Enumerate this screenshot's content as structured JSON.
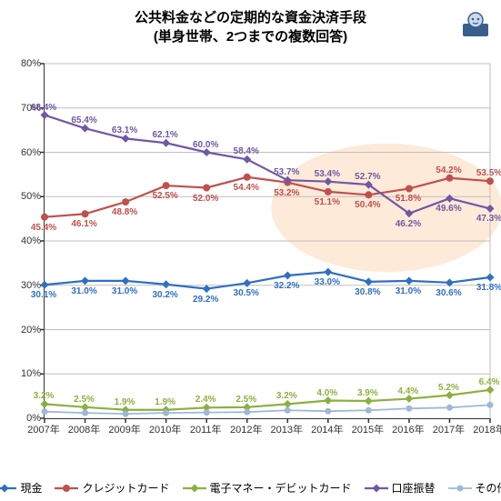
{
  "title_line1": "公共料金などの定期的な資金決済手段",
  "title_line2": "(単身世帯、2つまでの複数回答)",
  "title_fontsize": 15,
  "categories": [
    "2007年",
    "2008年",
    "2009年",
    "2010年",
    "2011年",
    "2012年",
    "2013年",
    "2014年",
    "2015年",
    "2016年",
    "2017年",
    "2018年"
  ],
  "ylim": [
    0,
    80
  ],
  "ytick_step": 10,
  "xtick_fontsize": 11,
  "ytick_fontsize": 11,
  "axis_color": "#333333",
  "grid_color": "#bfbfbf",
  "background_color": "#ffffff",
  "highlight": {
    "enabled": true,
    "color": "#fde1c9",
    "x_start_idx": 5.6,
    "x_end_idx": 11.3,
    "y_low": 33,
    "y_high": 62,
    "opacity": 0.7
  },
  "series": [
    {
      "name": "現金",
      "color": "#2f70c4",
      "marker": "diamond",
      "marker_size": 9,
      "line_width": 2.2,
      "label_pos": "below",
      "values": [
        30.1,
        31.0,
        31.0,
        30.2,
        29.2,
        30.5,
        32.2,
        33.0,
        30.8,
        31.0,
        30.6,
        31.8
      ]
    },
    {
      "name": "クレジットカード",
      "color": "#c0504d",
      "marker": "circle",
      "marker_size": 8,
      "line_width": 2.2,
      "label_pos": "mixed_cc",
      "values": [
        45.4,
        46.1,
        48.8,
        52.5,
        52.0,
        54.4,
        53.2,
        51.1,
        50.4,
        51.8,
        54.2,
        53.5
      ]
    },
    {
      "name": "電子マネー・デビットカード",
      "color": "#8cb03e",
      "marker": "diamond",
      "marker_size": 9,
      "line_width": 2.2,
      "label_pos": "above",
      "values": [
        3.2,
        2.5,
        1.9,
        1.9,
        2.4,
        2.5,
        3.2,
        4.0,
        3.9,
        4.4,
        5.2,
        6.4
      ]
    },
    {
      "name": "口座振替",
      "color": "#7058a4",
      "marker": "diamond",
      "marker_size": 9,
      "line_width": 2.2,
      "label_pos": "mixed_kz",
      "values": [
        68.4,
        65.4,
        63.1,
        62.1,
        60.0,
        58.4,
        53.7,
        53.4,
        52.7,
        46.2,
        49.6,
        47.3
      ]
    },
    {
      "name": "その他",
      "color": "#9db8d8",
      "marker": "circle",
      "marker_size": 7,
      "line_width": 1.8,
      "label_pos": "none",
      "values": [
        1.5,
        1.2,
        1.0,
        1.2,
        1.3,
        1.4,
        1.8,
        1.6,
        1.8,
        2.2,
        2.4,
        3.0
      ]
    }
  ],
  "legend": {
    "fontsize": 12
  }
}
